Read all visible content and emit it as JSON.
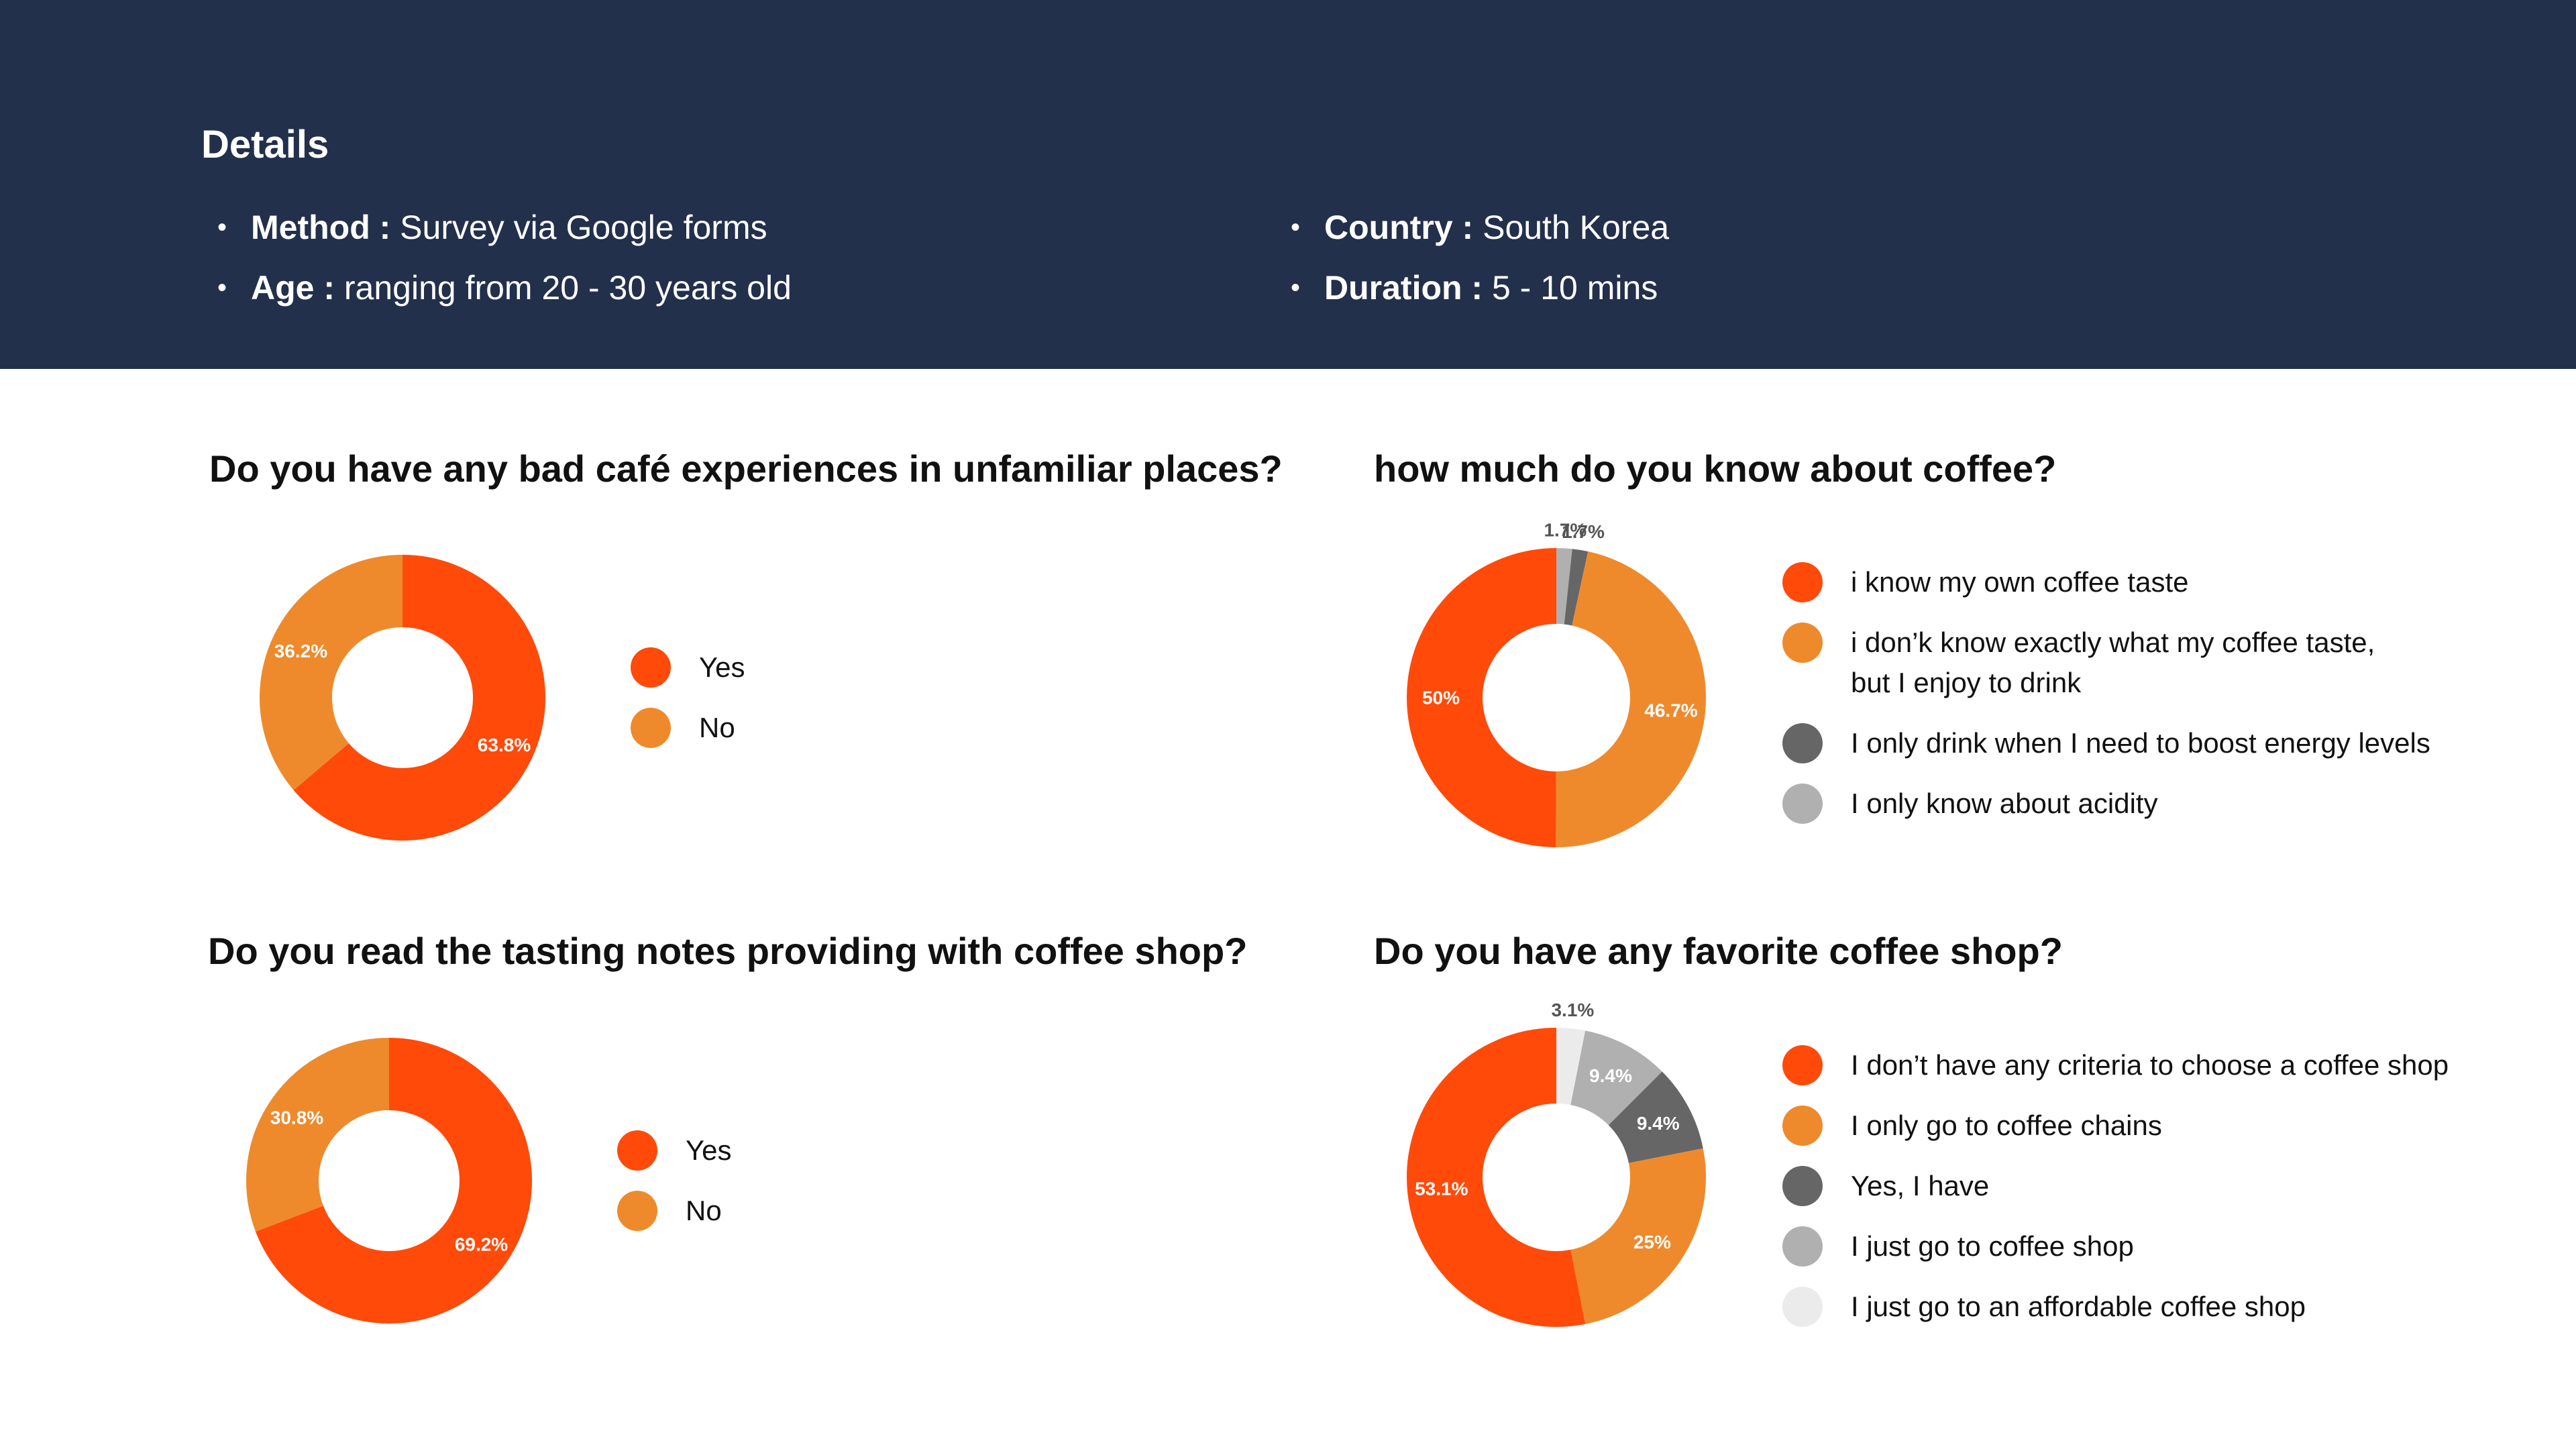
{
  "header": {
    "title": "Details",
    "details": [
      {
        "key": "Method :",
        "value": " Survey via Google forms"
      },
      {
        "key": "Age :",
        "value": " ranging from 20 - 30 years old"
      },
      {
        "key": "Country :",
        "value": " South Korea"
      },
      {
        "key": "Duration :",
        "value": " 5 - 10 mins"
      }
    ]
  },
  "colors": {
    "header_bg": "#22304c",
    "orange_red": "#ff4a0a",
    "orange": "#ee8a2c",
    "dark_gray": "#666666",
    "mid_gray": "#b0b0b0",
    "light_gray": "#ebebeb"
  },
  "chart_data": [
    {
      "type": "pie",
      "title": "Do you have any bad café experiences in unfamiliar places?",
      "categories": [
        "Yes",
        "No"
      ],
      "values": [
        63.8,
        36.2
      ],
      "labels": [
        "63.8%",
        "36.2%"
      ],
      "colors": [
        "#ff4a0a",
        "#ee8a2c"
      ],
      "legend": [
        "Yes",
        "No"
      ]
    },
    {
      "type": "pie",
      "title": "how much do you know about coffee?",
      "categories": [
        "I only know about acidity",
        "I only drink when I need to boost energy levels",
        "i don’k know exactly what my coffee taste, but I enjoy to drink",
        "i know my own coffee taste"
      ],
      "values": [
        1.7,
        1.7,
        46.7,
        50
      ],
      "labels": [
        "1.7%",
        "1.7%",
        "46.7%",
        "50%"
      ],
      "colors": [
        "#b0b0b0",
        "#666666",
        "#ee8a2c",
        "#ff4a0a"
      ],
      "legend": [
        "i know my own coffee taste",
        "i don’k know exactly what my coffee taste,",
        "but I enjoy to drink",
        "I only drink when I need to boost energy levels",
        "I only know about acidity"
      ]
    },
    {
      "type": "pie",
      "title": "Do you read the tasting notes providing with coffee shop?",
      "categories": [
        "Yes",
        "No"
      ],
      "values": [
        69.2,
        30.8
      ],
      "labels": [
        "69.2%",
        "30.8%"
      ],
      "colors": [
        "#ff4a0a",
        "#ee8a2c"
      ],
      "legend": [
        "Yes",
        "No"
      ]
    },
    {
      "type": "pie",
      "title": "Do you have any favorite coffee shop?",
      "categories": [
        "I just go to an affordable coffee shop",
        "I just go to  coffee shop",
        "Yes, I have",
        "I only go to coffee chains",
        "I don’t have any criteria to choose a coffee shop"
      ],
      "values": [
        3.1,
        9.4,
        9.4,
        25,
        53.1
      ],
      "labels": [
        "3.1%",
        "9.4%",
        "9.4%",
        "25%",
        "53.1%"
      ],
      "colors": [
        "#ebebeb",
        "#b0b0b0",
        "#666666",
        "#ee8a2c",
        "#ff4a0a"
      ],
      "legend": [
        "I don’t have any criteria to choose a coffee shop",
        "I only go to coffee chains",
        "Yes, I have",
        "I just go to  coffee shop",
        "I just go to an affordable coffee shop"
      ]
    }
  ]
}
